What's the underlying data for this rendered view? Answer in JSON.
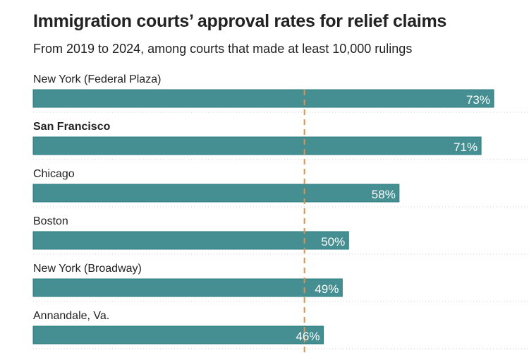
{
  "chart_data": {
    "type": "bar",
    "orientation": "horizontal",
    "title": "Immigration courts’ approval rates for relief claims",
    "subtitle": "From 2019 to 2024, among courts that made at least 10,000 rulings",
    "categories": [
      "New York (Federal Plaza)",
      "San Francisco",
      "Chicago",
      "Boston",
      "New York (Broadway)",
      "Annandale, Va."
    ],
    "values": [
      73,
      71,
      58,
      50,
      49,
      46
    ],
    "labels": [
      "73%",
      "71%",
      "58%",
      "50%",
      "49%",
      "46%"
    ],
    "highlighted_category": "San Francisco",
    "reference_line": {
      "value": 43,
      "style": "dashed"
    },
    "xlim": [
      0,
      73
    ],
    "unit": "%",
    "grid": false,
    "colors": {
      "bar": "#458e91",
      "bar_border": "#2b7f83",
      "reference_line": "#e0914a",
      "separator": "#cccccc"
    }
  }
}
